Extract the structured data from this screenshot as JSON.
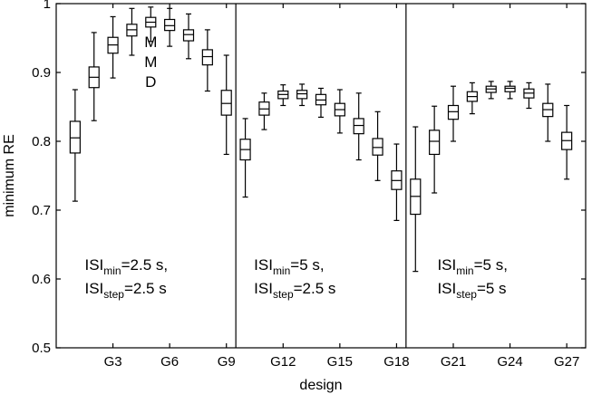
{
  "chart_data": {
    "type": "boxplot",
    "xlabel": "design",
    "ylabel": "minimum RE",
    "ylim": [
      0.5,
      1.0
    ],
    "yticks": [
      0.5,
      0.6,
      0.7,
      0.8,
      0.9,
      1.0
    ],
    "ytick_labels": [
      "0.5",
      "0.6",
      "0.7",
      "0.8",
      "0.9",
      "1"
    ],
    "xlim": [
      0,
      28
    ],
    "xticks": [
      3,
      6,
      9,
      12,
      15,
      18,
      21,
      24,
      27
    ],
    "xtick_labels": [
      "G3",
      "G6",
      "G9",
      "G12",
      "G15",
      "G18",
      "G21",
      "G24",
      "G27"
    ],
    "separators_after_design": [
      9,
      18
    ],
    "boxes": [
      {
        "design": 1,
        "wlo": 0.713,
        "q1": 0.783,
        "med": 0.805,
        "q3": 0.829,
        "whi": 0.875
      },
      {
        "design": 2,
        "wlo": 0.83,
        "q1": 0.878,
        "med": 0.893,
        "q3": 0.908,
        "whi": 0.958
      },
      {
        "design": 3,
        "wlo": 0.892,
        "q1": 0.928,
        "med": 0.94,
        "q3": 0.951,
        "whi": 0.981
      },
      {
        "design": 4,
        "wlo": 0.925,
        "q1": 0.953,
        "med": 0.962,
        "q3": 0.97,
        "whi": 0.993
      },
      {
        "design": 5,
        "wlo": 0.945,
        "q1": 0.966,
        "med": 0.973,
        "q3": 0.98,
        "whi": 0.995
      },
      {
        "design": 6,
        "wlo": 0.938,
        "q1": 0.961,
        "med": 0.968,
        "q3": 0.977,
        "whi": 0.993
      },
      {
        "design": 7,
        "wlo": 0.92,
        "q1": 0.946,
        "med": 0.955,
        "q3": 0.962,
        "whi": 0.985
      },
      {
        "design": 8,
        "wlo": 0.873,
        "q1": 0.911,
        "med": 0.923,
        "q3": 0.933,
        "whi": 0.962
      },
      {
        "design": 9,
        "wlo": 0.781,
        "q1": 0.838,
        "med": 0.855,
        "q3": 0.874,
        "whi": 0.925
      },
      {
        "design": 10,
        "wlo": 0.719,
        "q1": 0.773,
        "med": 0.788,
        "q3": 0.803,
        "whi": 0.833
      },
      {
        "design": 11,
        "wlo": 0.817,
        "q1": 0.838,
        "med": 0.847,
        "q3": 0.857,
        "whi": 0.87
      },
      {
        "design": 12,
        "wlo": 0.852,
        "q1": 0.862,
        "med": 0.868,
        "q3": 0.873,
        "whi": 0.882
      },
      {
        "design": 13,
        "wlo": 0.852,
        "q1": 0.862,
        "med": 0.869,
        "q3": 0.874,
        "whi": 0.883
      },
      {
        "design": 14,
        "wlo": 0.835,
        "q1": 0.853,
        "med": 0.86,
        "q3": 0.868,
        "whi": 0.877
      },
      {
        "design": 15,
        "wlo": 0.812,
        "q1": 0.837,
        "med": 0.846,
        "q3": 0.855,
        "whi": 0.875
      },
      {
        "design": 16,
        "wlo": 0.773,
        "q1": 0.811,
        "med": 0.823,
        "q3": 0.833,
        "whi": 0.87
      },
      {
        "design": 17,
        "wlo": 0.743,
        "q1": 0.78,
        "med": 0.791,
        "q3": 0.804,
        "whi": 0.843
      },
      {
        "design": 18,
        "wlo": 0.685,
        "q1": 0.73,
        "med": 0.743,
        "q3": 0.757,
        "whi": 0.796
      },
      {
        "design": 19,
        "wlo": 0.611,
        "q1": 0.694,
        "med": 0.72,
        "q3": 0.745,
        "whi": 0.821
      },
      {
        "design": 20,
        "wlo": 0.725,
        "q1": 0.781,
        "med": 0.8,
        "q3": 0.816,
        "whi": 0.851
      },
      {
        "design": 21,
        "wlo": 0.8,
        "q1": 0.832,
        "med": 0.843,
        "q3": 0.852,
        "whi": 0.88
      },
      {
        "design": 22,
        "wlo": 0.84,
        "q1": 0.858,
        "med": 0.865,
        "q3": 0.872,
        "whi": 0.885
      },
      {
        "design": 23,
        "wlo": 0.862,
        "q1": 0.871,
        "med": 0.876,
        "q3": 0.88,
        "whi": 0.887
      },
      {
        "design": 24,
        "wlo": 0.862,
        "q1": 0.872,
        "med": 0.877,
        "q3": 0.88,
        "whi": 0.887
      },
      {
        "design": 25,
        "wlo": 0.848,
        "q1": 0.863,
        "med": 0.87,
        "q3": 0.876,
        "whi": 0.885
      },
      {
        "design": 26,
        "wlo": 0.8,
        "q1": 0.836,
        "med": 0.846,
        "q3": 0.855,
        "whi": 0.883
      },
      {
        "design": 27,
        "wlo": 0.745,
        "q1": 0.788,
        "med": 0.801,
        "q3": 0.813,
        "whi": 0.852
      }
    ],
    "annotations": [
      {
        "letters": [
          "M",
          "M",
          "D"
        ],
        "design": 5,
        "y_top": 0.945
      },
      {
        "lines": [
          {
            "base": "ISI",
            "sub": "min",
            "rest": "=2.5 s,"
          },
          {
            "base": "ISI",
            "sub": "step",
            "rest": "=2.5 s"
          }
        ],
        "design": 0.55,
        "y": 0.613
      },
      {
        "lines": [
          {
            "base": "ISI",
            "sub": "min",
            "rest": "=5 s,"
          },
          {
            "base": "ISI",
            "sub": "step",
            "rest": "=2.5 s"
          }
        ],
        "design": 9.5,
        "y": 0.613
      },
      {
        "lines": [
          {
            "base": "ISI",
            "sub": "min",
            "rest": "=5 s,"
          },
          {
            "base": "ISI",
            "sub": "step",
            "rest": "=5 s"
          }
        ],
        "design": 19.2,
        "y": 0.613
      }
    ]
  }
}
